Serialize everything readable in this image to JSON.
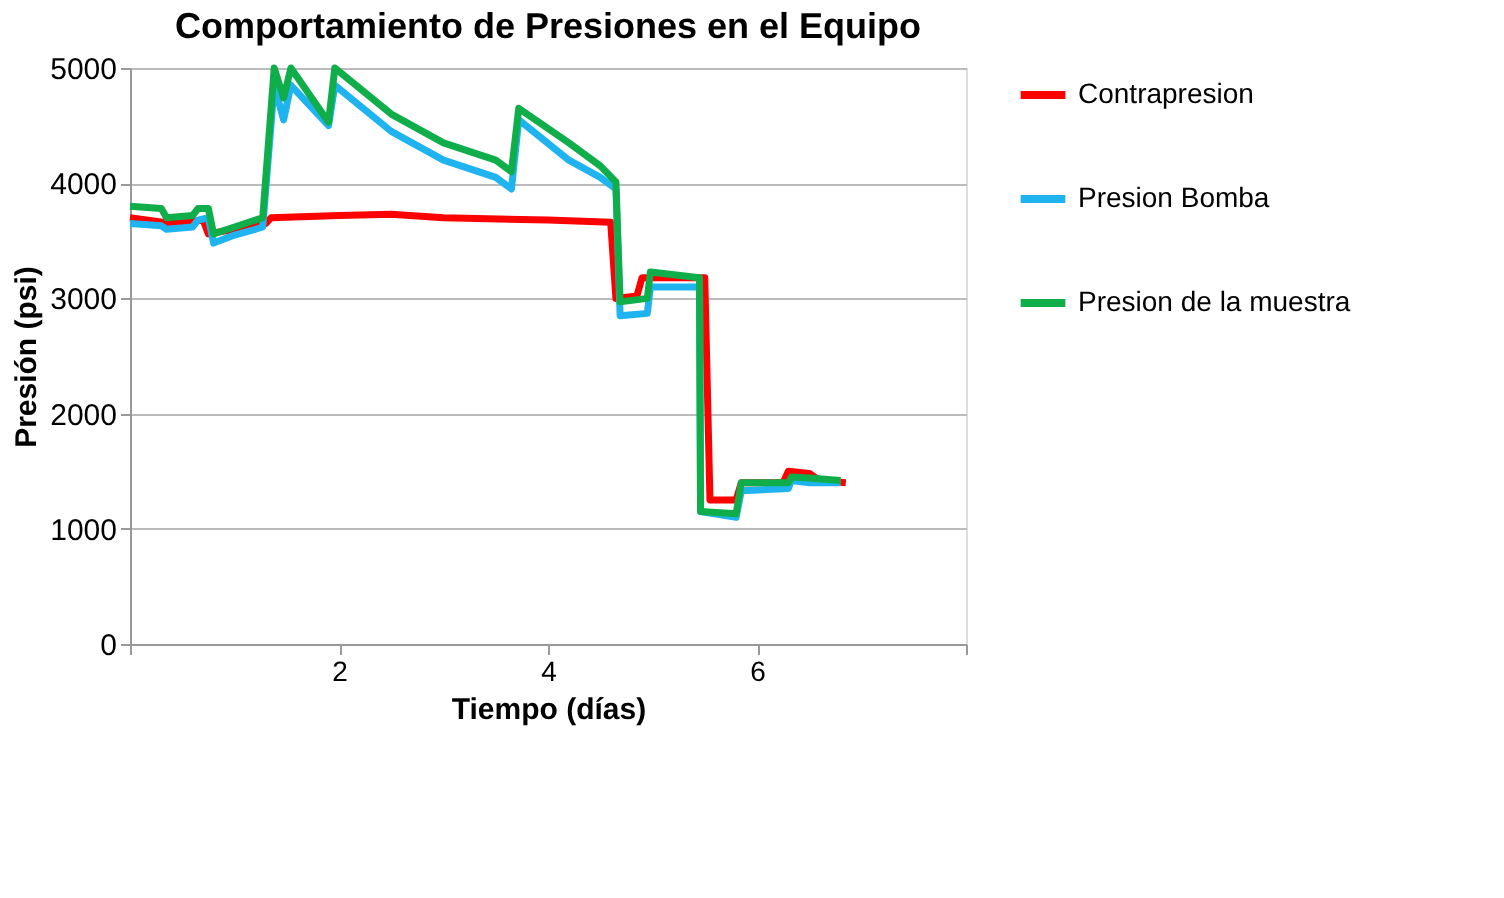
{
  "chart_data": {
    "type": "line",
    "title": "Comportamiento de Presiones en el Equipo",
    "xlabel": "Tiempo (días)",
    "ylabel": "Presión (psi)",
    "xlim": [
      0,
      8
    ],
    "xticks": [
      {
        "value": 0,
        "label": null
      },
      2,
      4,
      6,
      {
        "value": 8,
        "label": null
      }
    ],
    "ylim": [
      0,
      5000
    ],
    "yticks": [
      0,
      1000,
      2000,
      3000,
      4000,
      5000
    ],
    "grid": "y",
    "legend": "right",
    "line_style": "solid",
    "marker": "none",
    "series": [
      {
        "name": "Contrapresion",
        "color": "#ff0000",
        "x": [
          0,
          0.4,
          0.7,
          0.75,
          1.0,
          1.3,
          1.35,
          2.0,
          2.5,
          3.0,
          4.0,
          4.6,
          4.65,
          4.85,
          4.9,
          5.5,
          5.55,
          5.8,
          5.85,
          6.25,
          6.3,
          6.5,
          6.6,
          6.85
        ],
        "values": [
          3700,
          3650,
          3680,
          3560,
          3600,
          3650,
          3700,
          3720,
          3730,
          3700,
          3680,
          3660,
          3000,
          3020,
          3180,
          3180,
          1250,
          1250,
          1400,
          1400,
          1500,
          1480,
          1420,
          1400
        ]
      },
      {
        "name": "Presion Bomba",
        "color": "#1fb4f0",
        "x": [
          0,
          0.3,
          0.35,
          0.6,
          0.65,
          0.75,
          0.8,
          1.0,
          1.2,
          1.27,
          1.38,
          1.47,
          1.54,
          1.9,
          1.96,
          2.5,
          3.0,
          3.5,
          3.65,
          3.72,
          4.2,
          4.5,
          4.65,
          4.69,
          4.95,
          4.98,
          5.45,
          5.46,
          5.8,
          5.85,
          6.3,
          6.33,
          6.5,
          6.8
        ],
        "values": [
          3650,
          3630,
          3600,
          3620,
          3680,
          3700,
          3480,
          3550,
          3600,
          3620,
          4850,
          4550,
          4850,
          4500,
          4850,
          4450,
          4200,
          4050,
          3950,
          4550,
          4200,
          4050,
          3950,
          2850,
          2870,
          3100,
          3100,
          1150,
          1100,
          1330,
          1350,
          1420,
          1400,
          1400
        ]
      },
      {
        "name": "Presion de la muestra",
        "color": "#0fae4a",
        "x": [
          0,
          0.3,
          0.35,
          0.6,
          0.65,
          0.75,
          0.8,
          1.0,
          1.2,
          1.27,
          1.38,
          1.47,
          1.54,
          1.9,
          1.96,
          2.5,
          3.0,
          3.5,
          3.65,
          3.72,
          4.2,
          4.5,
          4.65,
          4.69,
          4.95,
          4.98,
          5.45,
          5.46,
          5.8,
          5.85,
          6.3,
          6.33,
          6.5,
          6.8
        ],
        "values": [
          3800,
          3780,
          3700,
          3720,
          3780,
          3780,
          3560,
          3620,
          3680,
          3700,
          5000,
          4740,
          5000,
          4530,
          5000,
          4600,
          4350,
          4200,
          4100,
          4650,
          4350,
          4150,
          4010,
          2970,
          3000,
          3230,
          3180,
          1150,
          1130,
          1400,
          1400,
          1450,
          1440,
          1420
        ]
      }
    ]
  }
}
